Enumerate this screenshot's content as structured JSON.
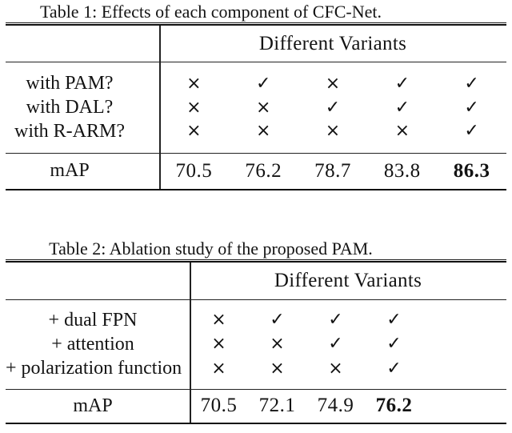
{
  "page": {
    "background": "#ffffff",
    "text_color": "#131313"
  },
  "tables": [
    {
      "caption": "Table 1: Effects of each component of CFC-Net.",
      "variants_header": "Different Variants",
      "component_rows": [
        {
          "label": "with PAM?",
          "marks": [
            "×",
            "✓",
            "×",
            "✓",
            "✓"
          ]
        },
        {
          "label": "with DAL?",
          "marks": [
            "×",
            "×",
            "✓",
            "✓",
            "✓"
          ]
        },
        {
          "label": "with R-ARM?",
          "marks": [
            "×",
            "×",
            "×",
            "×",
            "✓"
          ]
        }
      ],
      "map_row": {
        "label": "mAP",
        "values": [
          "70.5",
          "76.2",
          "78.7",
          "83.8",
          "86.3"
        ]
      }
    },
    {
      "caption": "Table 2: Ablation study of the proposed PAM.",
      "variants_header": "Different Variants",
      "component_rows": [
        {
          "label": "+ dual FPN",
          "marks": [
            "×",
            "✓",
            "✓",
            "✓"
          ]
        },
        {
          "label": "+ attention",
          "marks": [
            "×",
            "×",
            "✓",
            "✓"
          ]
        },
        {
          "label": "+ polarization function",
          "marks": [
            "×",
            "×",
            "×",
            "✓"
          ]
        }
      ],
      "map_row": {
        "label": "mAP",
        "values": [
          "70.5",
          "72.1",
          "74.9",
          "76.2"
        ]
      }
    }
  ]
}
